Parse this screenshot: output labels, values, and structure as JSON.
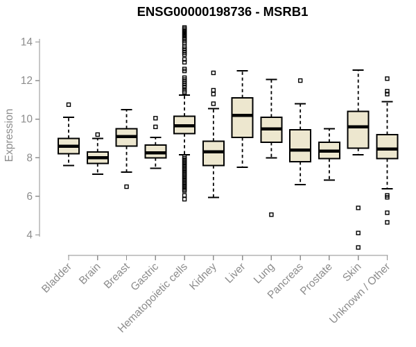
{
  "chart_data": {
    "type": "boxplot",
    "title": "ENSG00000198736 - MSRB1",
    "xlabel": "",
    "ylabel": "Expression",
    "yticks": [
      4,
      6,
      8,
      10,
      12,
      14
    ],
    "ylim": [
      3.2,
      14.8
    ],
    "grid": false,
    "legend": false,
    "box_fill": "#ede7cf",
    "box_stroke": "#000000",
    "axis_color": "#8f8f8f",
    "label_color": "#8c8c8c",
    "categories": [
      "Bladder",
      "Brain",
      "Breast",
      "Gastric",
      "Hematopoietic cells",
      "Kidney",
      "Liver",
      "Lung",
      "Pancreas",
      "Prostate",
      "Skin",
      "Unknown / Other"
    ],
    "series": [
      {
        "category": "Bladder",
        "whisker_low": 7.6,
        "q1": 8.2,
        "median": 8.6,
        "q3": 9.0,
        "whisker_high": 10.1,
        "outliers": [
          10.75
        ]
      },
      {
        "category": "Brain",
        "whisker_low": 7.15,
        "q1": 7.7,
        "median": 8.0,
        "q3": 8.3,
        "whisker_high": 9.0,
        "outliers": [
          9.2
        ]
      },
      {
        "category": "Breast",
        "whisker_low": 7.25,
        "q1": 8.6,
        "median": 9.1,
        "q3": 9.5,
        "whisker_high": 10.5,
        "outliers": [
          6.5
        ]
      },
      {
        "category": "Gastric",
        "whisker_low": 7.45,
        "q1": 8.0,
        "median": 8.25,
        "q3": 8.65,
        "whisker_high": 9.05,
        "outliers": [
          10.05,
          9.6
        ]
      },
      {
        "category": "Hematopoietic cells",
        "whisker_low": 8.15,
        "q1": 9.25,
        "median": 9.65,
        "q3": 10.15,
        "whisker_high": 11.25,
        "outliers": [
          14.75,
          14.68,
          14.6,
          14.52,
          14.45,
          14.38,
          14.3,
          14.22,
          14.15,
          14.05,
          13.95,
          13.75,
          13.65,
          13.55,
          13.45,
          13.35,
          13.1,
          12.95,
          12.6,
          12.5,
          12.15,
          12.05,
          11.95,
          11.85,
          11.75,
          11.65,
          11.5,
          11.4,
          8.05,
          7.97,
          7.89,
          7.81,
          7.73,
          7.65,
          7.57,
          7.49,
          7.41,
          7.33,
          7.25,
          7.17,
          7.09,
          7.01,
          6.93,
          6.85,
          6.77,
          6.69,
          6.61,
          6.53,
          6.45,
          6.37,
          6.3,
          6.05,
          5.85
        ]
      },
      {
        "category": "Kidney",
        "whisker_low": 5.95,
        "q1": 7.6,
        "median": 8.3,
        "q3": 8.85,
        "whisker_high": 10.55,
        "outliers": [
          12.4,
          11.5,
          11.3,
          10.8
        ]
      },
      {
        "category": "Liver",
        "whisker_low": 7.5,
        "q1": 9.05,
        "median": 10.2,
        "q3": 11.1,
        "whisker_high": 12.5,
        "outliers": []
      },
      {
        "category": "Lung",
        "whisker_low": 8.0,
        "q1": 8.8,
        "median": 9.5,
        "q3": 10.1,
        "whisker_high": 12.05,
        "outliers": [
          5.05
        ]
      },
      {
        "category": "Pancreas",
        "whisker_low": 6.6,
        "q1": 7.8,
        "median": 8.4,
        "q3": 9.45,
        "whisker_high": 10.8,
        "outliers": [
          12.0
        ]
      },
      {
        "category": "Prostate",
        "whisker_low": 6.85,
        "q1": 7.95,
        "median": 8.35,
        "q3": 8.8,
        "whisker_high": 9.5,
        "outliers": []
      },
      {
        "category": "Skin",
        "whisker_low": 8.15,
        "q1": 8.5,
        "median": 9.6,
        "q3": 10.4,
        "whisker_high": 12.55,
        "outliers": [
          5.4,
          4.1,
          3.35
        ]
      },
      {
        "category": "Unknown / Other",
        "whisker_low": 6.4,
        "q1": 7.95,
        "median": 8.45,
        "q3": 9.2,
        "whisker_high": 10.9,
        "outliers": [
          12.1,
          11.45,
          11.3,
          6.05,
          5.95,
          5.15,
          4.65
        ]
      }
    ]
  }
}
